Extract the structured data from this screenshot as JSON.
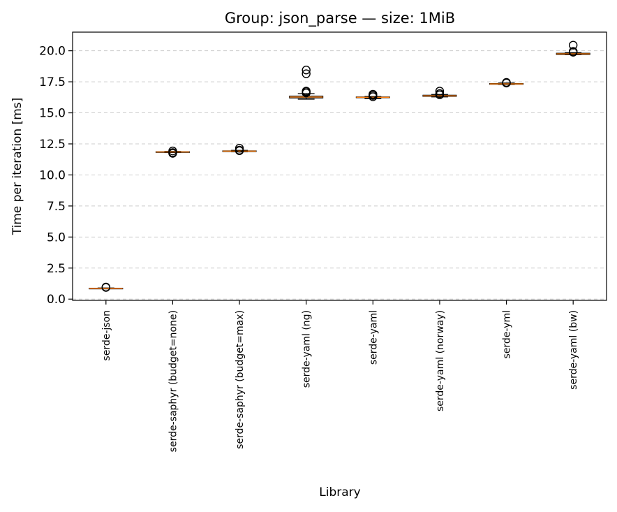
{
  "chart_data": {
    "type": "box",
    "title": "Group: json_parse — size: 1MiB",
    "xlabel": "Library",
    "ylabel": "Time per iteration [ms]",
    "ylim": [
      -0.1,
      21.5
    ],
    "yticks": [
      0.0,
      2.5,
      5.0,
      7.5,
      10.0,
      12.5,
      15.0,
      17.5,
      20.0
    ],
    "ytick_labels": [
      "0.0",
      "2.5",
      "5.0",
      "7.5",
      "10.0",
      "12.5",
      "15.0",
      "17.5",
      "20.0"
    ],
    "grid": "y-dashed",
    "categories": [
      "serde-json",
      "serde-saphyr (budget=none)",
      "serde-saphyr (budget=max)",
      "serde-yaml (ng)",
      "serde-yaml",
      "serde-yaml (norway)",
      "serde-yml",
      "serde-yaml (bw)"
    ],
    "boxes": [
      {
        "whisker_low": 0.84,
        "q1": 0.86,
        "median": 0.87,
        "q3": 0.88,
        "whisker_high": 0.9,
        "outliers": [
          0.94,
          0.97
        ]
      },
      {
        "whisker_low": 11.8,
        "q1": 11.83,
        "median": 11.85,
        "q3": 11.87,
        "whisker_high": 11.9,
        "outliers": [
          11.74,
          11.8,
          11.93
        ]
      },
      {
        "whisker_low": 11.86,
        "q1": 11.9,
        "median": 11.92,
        "q3": 11.94,
        "whisker_high": 11.98,
        "outliers": [
          11.95,
          12.0,
          12.15
        ]
      },
      {
        "whisker_low": 16.1,
        "q1": 16.2,
        "median": 16.27,
        "q3": 16.35,
        "whisker_high": 16.55,
        "outliers": [
          16.6,
          16.7,
          16.75,
          18.15,
          18.45
        ]
      },
      {
        "whisker_low": 16.15,
        "q1": 16.22,
        "median": 16.25,
        "q3": 16.28,
        "whisker_high": 16.32,
        "outliers": [
          16.3,
          16.4,
          16.5
        ]
      },
      {
        "whisker_low": 16.28,
        "q1": 16.33,
        "median": 16.37,
        "q3": 16.42,
        "whisker_high": 16.48,
        "outliers": [
          16.45,
          16.55,
          16.75
        ]
      },
      {
        "whisker_low": 17.28,
        "q1": 17.3,
        "median": 17.33,
        "q3": 17.36,
        "whisker_high": 17.4,
        "outliers": [
          17.4,
          17.45
        ]
      },
      {
        "whisker_low": 19.68,
        "q1": 19.7,
        "median": 19.75,
        "q3": 19.8,
        "whisker_high": 19.85,
        "outliers": [
          19.88,
          19.95,
          20.45
        ]
      }
    ],
    "colors": {
      "median": "#ff7f0e",
      "box": "#000000",
      "grid": "#cccccc",
      "background": "#ffffff"
    }
  }
}
